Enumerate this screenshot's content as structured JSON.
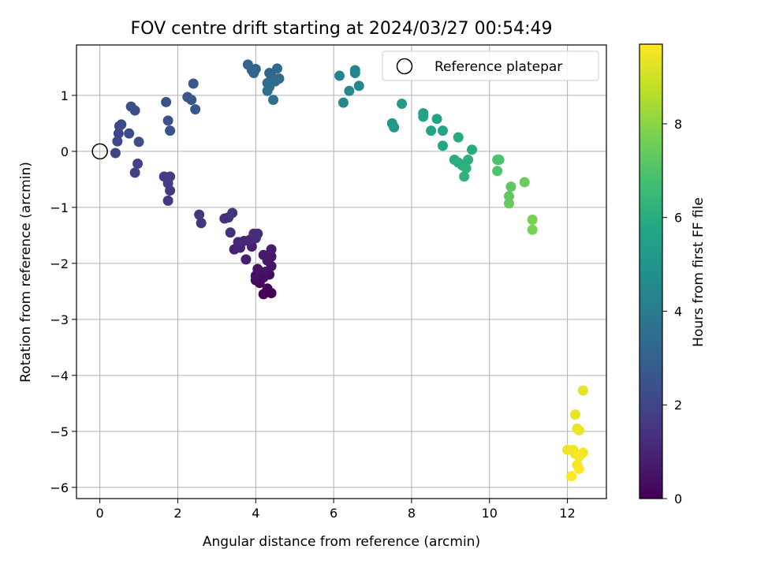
{
  "chart_data": {
    "type": "scatter",
    "title": "FOV centre drift starting at 2024/03/27 00:54:49",
    "xlabel": "Angular distance from reference (arcmin)",
    "ylabel": "Rotation from reference (arcmin)",
    "xlim": [
      -0.6,
      13.0
    ],
    "ylim": [
      -6.2,
      1.9
    ],
    "xticks": [
      "0",
      "2",
      "4",
      "6",
      "8",
      "10",
      "12"
    ],
    "yticks": [
      "−6",
      "−5",
      "−4",
      "−3",
      "−2",
      "−1",
      "0",
      "1"
    ],
    "grid": true,
    "legend": {
      "placement": "top-right",
      "entries": [
        "Reference platepar"
      ]
    },
    "reference_point": {
      "x": 0,
      "y": 0
    },
    "colorbar": {
      "label": "Hours from first FF file",
      "range": [
        0,
        9.7
      ],
      "ticks": [
        "0",
        "2",
        "4",
        "6",
        "8"
      ],
      "colormap": "viridis"
    },
    "points": [
      {
        "x": 4.4,
        "y": -2.53,
        "t": 0.05
      },
      {
        "x": 4.2,
        "y": -2.55,
        "t": 0.1
      },
      {
        "x": 4.3,
        "y": -2.45,
        "t": 0.15
      },
      {
        "x": 4.1,
        "y": -2.35,
        "t": 0.2
      },
      {
        "x": 4.0,
        "y": -2.3,
        "t": 0.25
      },
      {
        "x": 4.35,
        "y": -2.2,
        "t": 0.3
      },
      {
        "x": 4.2,
        "y": -2.25,
        "t": 0.35
      },
      {
        "x": 4.0,
        "y": -2.22,
        "t": 0.4
      },
      {
        "x": 4.25,
        "y": -2.15,
        "t": 0.45
      },
      {
        "x": 4.05,
        "y": -2.1,
        "t": 0.5
      },
      {
        "x": 4.4,
        "y": -2.05,
        "t": 0.55
      },
      {
        "x": 4.3,
        "y": -1.95,
        "t": 0.6
      },
      {
        "x": 4.4,
        "y": -1.88,
        "t": 0.65
      },
      {
        "x": 4.2,
        "y": -1.85,
        "t": 0.7
      },
      {
        "x": 4.4,
        "y": -1.75,
        "t": 0.75
      },
      {
        "x": 3.75,
        "y": -1.93,
        "t": 0.8
      },
      {
        "x": 3.9,
        "y": -1.7,
        "t": 0.85
      },
      {
        "x": 3.45,
        "y": -1.75,
        "t": 0.9
      },
      {
        "x": 3.6,
        "y": -1.72,
        "t": 0.95
      },
      {
        "x": 3.7,
        "y": -1.6,
        "t": 1.0
      },
      {
        "x": 3.85,
        "y": -1.58,
        "t": 1.05
      },
      {
        "x": 3.55,
        "y": -1.62,
        "t": 1.1
      },
      {
        "x": 4.0,
        "y": -1.55,
        "t": 1.15
      },
      {
        "x": 3.95,
        "y": -1.47,
        "t": 1.2
      },
      {
        "x": 4.05,
        "y": -1.47,
        "t": 1.25
      },
      {
        "x": 3.35,
        "y": -1.45,
        "t": 1.3
      },
      {
        "x": 3.2,
        "y": -1.2,
        "t": 1.35
      },
      {
        "x": 3.3,
        "y": -1.18,
        "t": 1.4
      },
      {
        "x": 3.4,
        "y": -1.1,
        "t": 1.45
      },
      {
        "x": 2.6,
        "y": -1.28,
        "t": 1.5
      },
      {
        "x": 2.55,
        "y": -1.13,
        "t": 1.55
      },
      {
        "x": 1.75,
        "y": -0.88,
        "t": 1.6
      },
      {
        "x": 1.8,
        "y": -0.7,
        "t": 1.65
      },
      {
        "x": 1.75,
        "y": -0.57,
        "t": 1.7
      },
      {
        "x": 1.65,
        "y": -0.45,
        "t": 1.75
      },
      {
        "x": 1.8,
        "y": -0.45,
        "t": 1.8
      },
      {
        "x": 0.9,
        "y": -0.38,
        "t": 1.85
      },
      {
        "x": 0.97,
        "y": -0.22,
        "t": 1.9
      },
      {
        "x": 0.4,
        "y": -0.03,
        "t": 1.95
      },
      {
        "x": 0.45,
        "y": 0.18,
        "t": 2.0
      },
      {
        "x": 0.48,
        "y": 0.32,
        "t": 2.05
      },
      {
        "x": 0.5,
        "y": 0.45,
        "t": 2.1
      },
      {
        "x": 0.55,
        "y": 0.48,
        "t": 2.15
      },
      {
        "x": 0.75,
        "y": 0.32,
        "t": 2.2
      },
      {
        "x": 1.0,
        "y": 0.17,
        "t": 2.25
      },
      {
        "x": 0.8,
        "y": 0.8,
        "t": 2.3
      },
      {
        "x": 0.9,
        "y": 0.73,
        "t": 2.35
      },
      {
        "x": 1.8,
        "y": 0.37,
        "t": 2.4
      },
      {
        "x": 1.75,
        "y": 0.55,
        "t": 2.45
      },
      {
        "x": 1.7,
        "y": 0.88,
        "t": 2.5
      },
      {
        "x": 2.25,
        "y": 0.97,
        "t": 2.55
      },
      {
        "x": 2.35,
        "y": 0.92,
        "t": 2.6
      },
      {
        "x": 2.45,
        "y": 0.75,
        "t": 2.65
      },
      {
        "x": 2.4,
        "y": 1.21,
        "t": 2.7
      },
      {
        "x": 3.8,
        "y": 1.55,
        "t": 3.0
      },
      {
        "x": 3.9,
        "y": 1.45,
        "t": 3.05
      },
      {
        "x": 3.95,
        "y": 1.4,
        "t": 3.1
      },
      {
        "x": 4.0,
        "y": 1.47,
        "t": 3.15
      },
      {
        "x": 4.35,
        "y": 1.4,
        "t": 3.2
      },
      {
        "x": 4.55,
        "y": 1.48,
        "t": 3.25
      },
      {
        "x": 4.4,
        "y": 1.35,
        "t": 3.3
      },
      {
        "x": 4.6,
        "y": 1.3,
        "t": 3.35
      },
      {
        "x": 4.5,
        "y": 1.25,
        "t": 3.4
      },
      {
        "x": 4.3,
        "y": 1.22,
        "t": 3.45
      },
      {
        "x": 4.35,
        "y": 1.15,
        "t": 3.5
      },
      {
        "x": 4.3,
        "y": 1.08,
        "t": 3.55
      },
      {
        "x": 4.45,
        "y": 0.92,
        "t": 3.6
      },
      {
        "x": 6.15,
        "y": 1.35,
        "t": 4.3
      },
      {
        "x": 6.55,
        "y": 1.45,
        "t": 4.35
      },
      {
        "x": 6.55,
        "y": 1.4,
        "t": 4.4
      },
      {
        "x": 6.65,
        "y": 1.17,
        "t": 4.45
      },
      {
        "x": 6.4,
        "y": 1.08,
        "t": 4.5
      },
      {
        "x": 6.25,
        "y": 0.87,
        "t": 4.55
      },
      {
        "x": 7.5,
        "y": 0.5,
        "t": 5.2
      },
      {
        "x": 7.55,
        "y": 0.43,
        "t": 5.25
      },
      {
        "x": 7.75,
        "y": 0.85,
        "t": 5.3
      },
      {
        "x": 8.3,
        "y": 0.68,
        "t": 5.5
      },
      {
        "x": 8.3,
        "y": 0.62,
        "t": 5.55
      },
      {
        "x": 8.65,
        "y": 0.58,
        "t": 5.6
      },
      {
        "x": 8.5,
        "y": 0.37,
        "t": 5.65
      },
      {
        "x": 8.8,
        "y": 0.37,
        "t": 5.7
      },
      {
        "x": 8.8,
        "y": 0.1,
        "t": 5.75
      },
      {
        "x": 9.2,
        "y": 0.25,
        "t": 5.9
      },
      {
        "x": 9.55,
        "y": 0.03,
        "t": 5.95
      },
      {
        "x": 9.1,
        "y": -0.15,
        "t": 6.0
      },
      {
        "x": 9.2,
        "y": -0.2,
        "t": 6.05
      },
      {
        "x": 9.3,
        "y": -0.25,
        "t": 6.1
      },
      {
        "x": 9.45,
        "y": -0.15,
        "t": 6.15
      },
      {
        "x": 9.4,
        "y": -0.3,
        "t": 6.2
      },
      {
        "x": 9.35,
        "y": -0.45,
        "t": 6.25
      },
      {
        "x": 10.2,
        "y": -0.15,
        "t": 6.9
      },
      {
        "x": 10.25,
        "y": -0.15,
        "t": 6.95
      },
      {
        "x": 10.2,
        "y": -0.35,
        "t": 7.0
      },
      {
        "x": 10.55,
        "y": -0.63,
        "t": 7.3
      },
      {
        "x": 10.5,
        "y": -0.8,
        "t": 7.35
      },
      {
        "x": 10.5,
        "y": -0.93,
        "t": 7.4
      },
      {
        "x": 10.9,
        "y": -0.55,
        "t": 7.5
      },
      {
        "x": 11.1,
        "y": -1.22,
        "t": 7.7
      },
      {
        "x": 11.1,
        "y": -1.4,
        "t": 7.75
      },
      {
        "x": 12.4,
        "y": -4.27,
        "t": 9.3
      },
      {
        "x": 12.2,
        "y": -4.7,
        "t": 9.35
      },
      {
        "x": 12.25,
        "y": -4.95,
        "t": 9.4
      },
      {
        "x": 12.3,
        "y": -4.98,
        "t": 9.45
      },
      {
        "x": 12.0,
        "y": -5.33,
        "t": 9.5
      },
      {
        "x": 12.15,
        "y": -5.33,
        "t": 9.5
      },
      {
        "x": 12.2,
        "y": -5.4,
        "t": 9.55
      },
      {
        "x": 12.4,
        "y": -5.38,
        "t": 9.55
      },
      {
        "x": 12.3,
        "y": -5.45,
        "t": 9.6
      },
      {
        "x": 12.25,
        "y": -5.6,
        "t": 9.6
      },
      {
        "x": 12.3,
        "y": -5.67,
        "t": 9.65
      },
      {
        "x": 12.1,
        "y": -5.8,
        "t": 9.7
      }
    ]
  }
}
